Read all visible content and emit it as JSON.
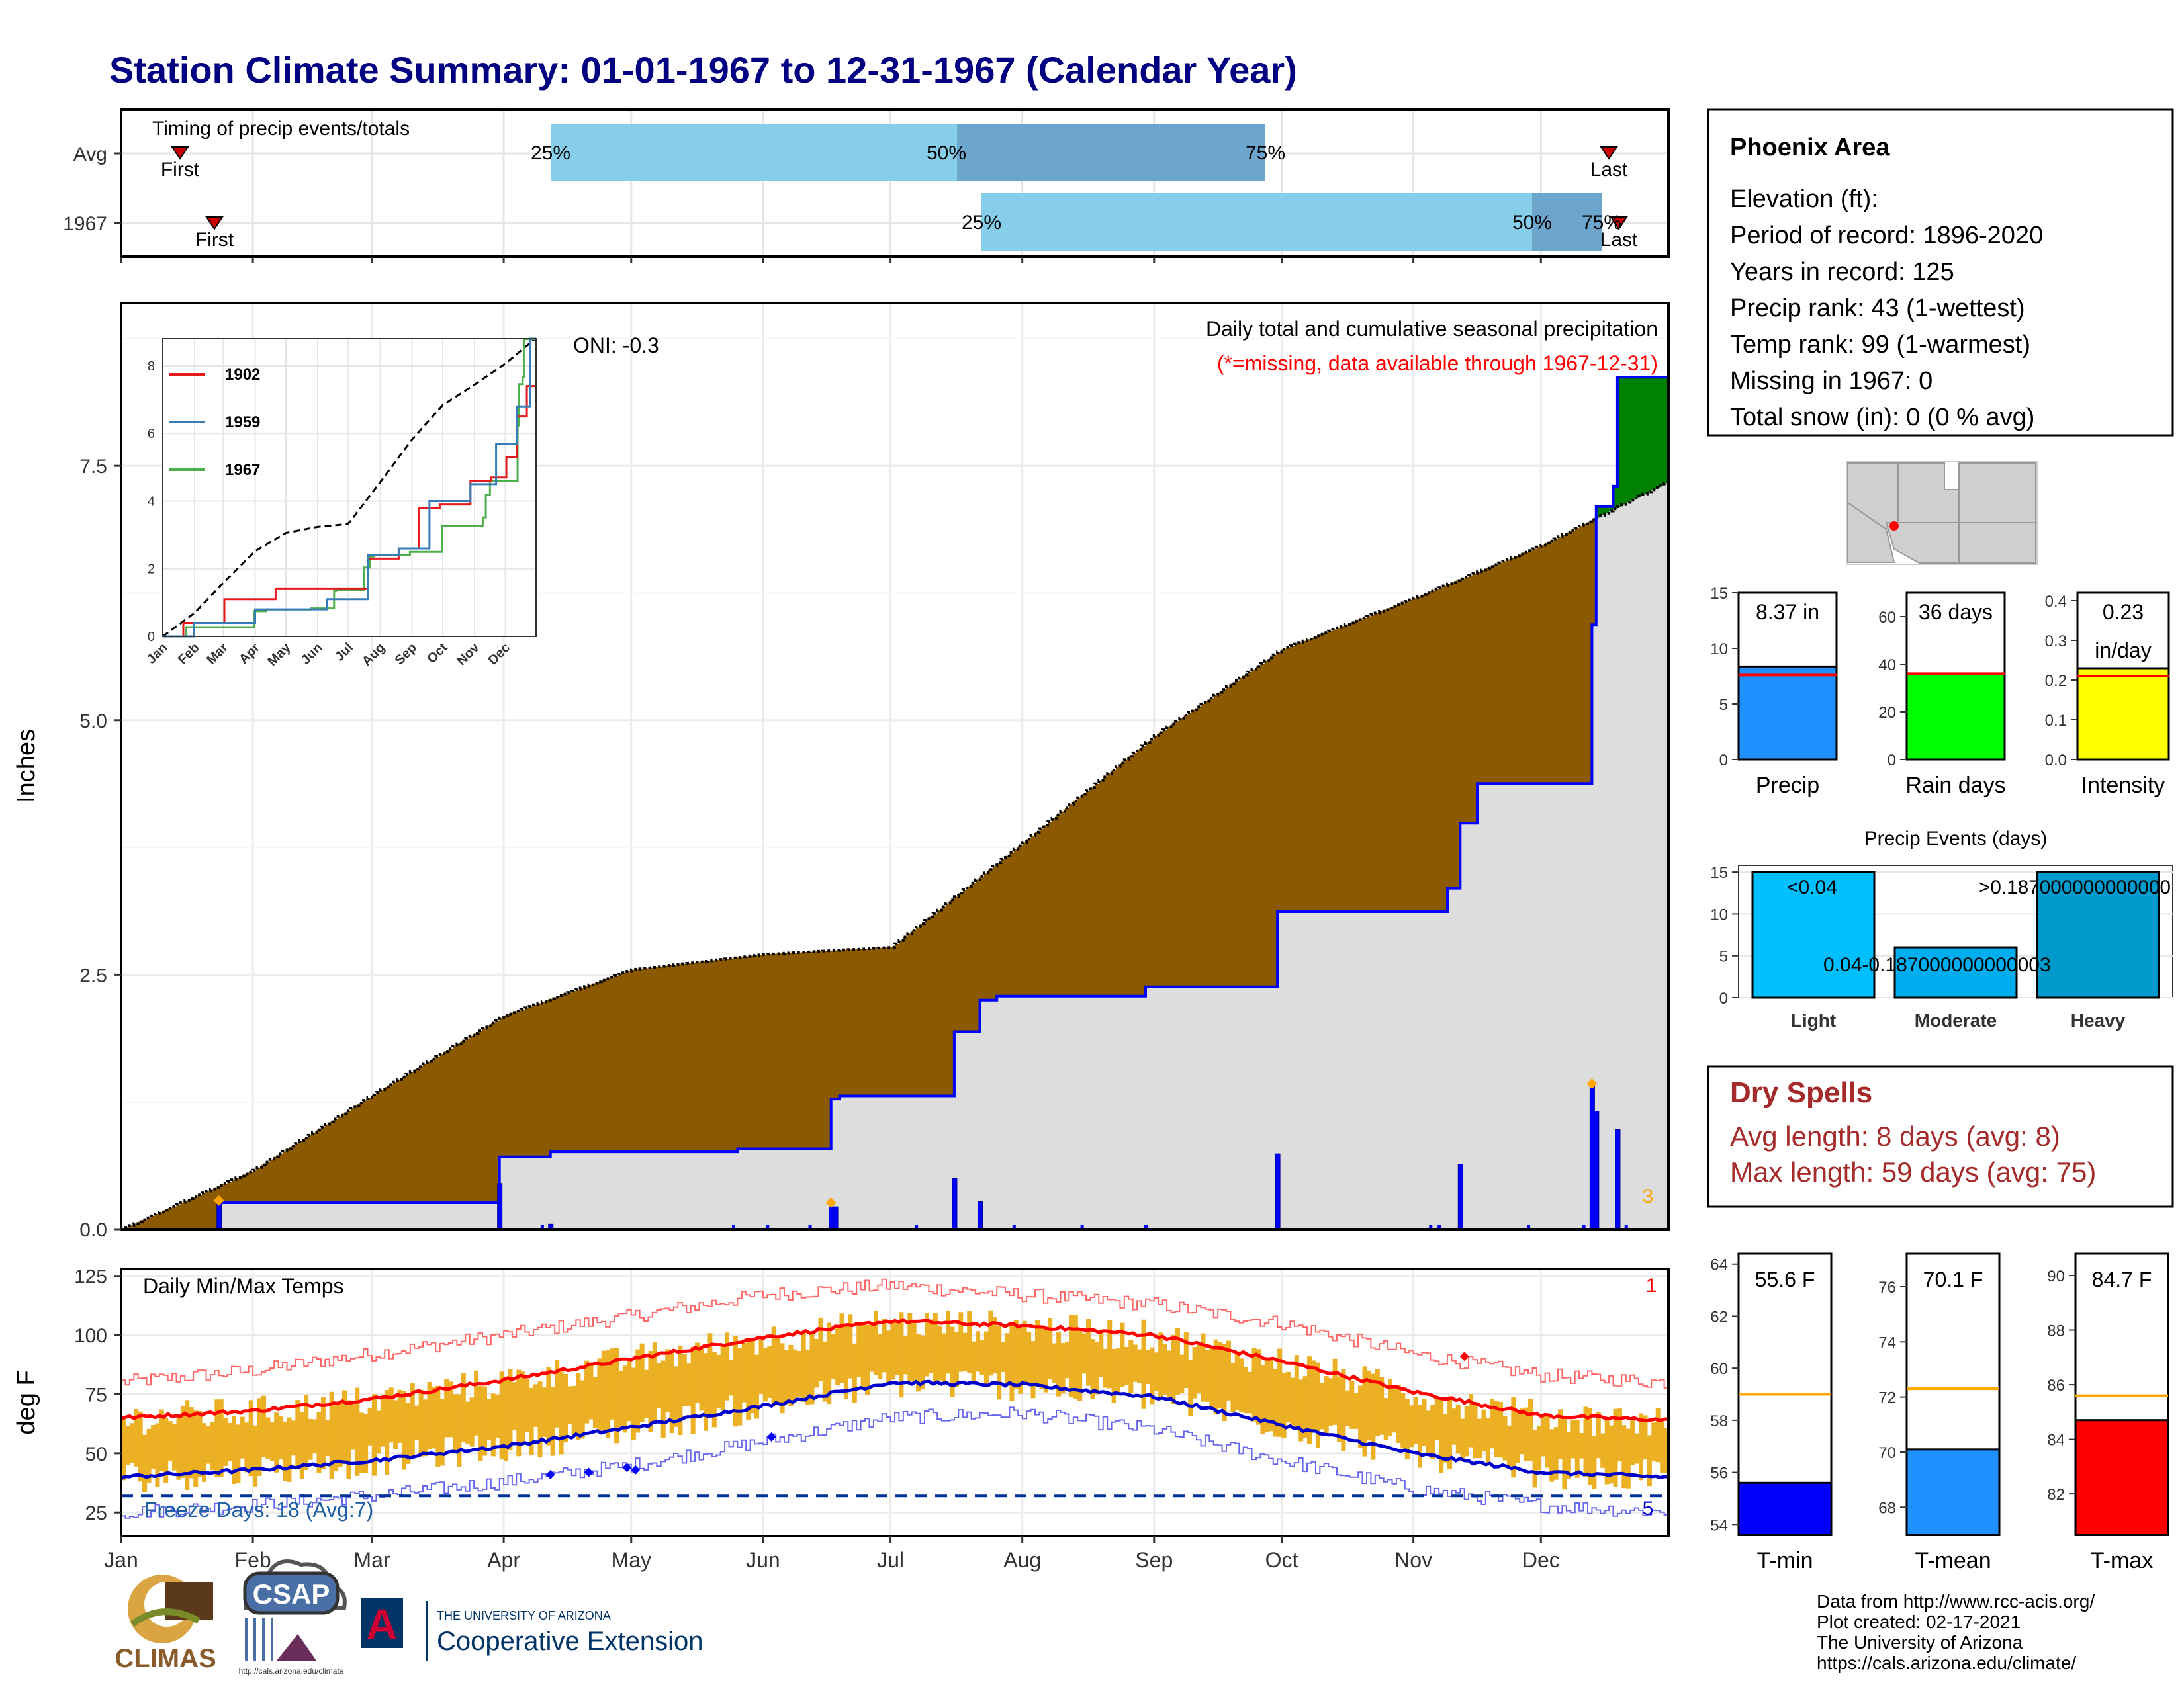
{
  "title": "Station Climate Summary: 01-01-1967 to 12-31-1967 (Calendar Year)",
  "colors": {
    "title": "#000080",
    "precip_fill": "#8B5A00",
    "surplus_fill": "#008000",
    "normal_fill": "#DDDDDD",
    "cum_line": "#0000FF",
    "temp_bar": "#EBB023",
    "tmax_normal": "#FF0000",
    "tmin_normal": "#0000CC",
    "timing_light": "#87CEEB",
    "timing_dark": "#6CA6CD",
    "dry_spell_text": "#A52A2A",
    "missing_note": "#FF0000",
    "marker_orange": "#FFA500"
  },
  "timing": {
    "title": "Timing of precip events/totals",
    "rows": [
      "Avg",
      "1967"
    ],
    "first_label": "First",
    "last_label": "Last",
    "pct_labels": [
      "25%",
      "50%",
      "75%"
    ]
  },
  "info": {
    "station": "Phoenix Area",
    "lines": [
      "Elevation (ft):",
      "Period of record: 1896-2020",
      "Years in record: 125",
      "Precip rank: 43 (1-wettest)",
      "Temp rank: 99 (1-warmest)",
      "Missing in 1967: 0",
      "Total snow (in): 0 (0 % avg)"
    ]
  },
  "precip_panel": {
    "ylabel": "Inches",
    "yticks": [
      "0.0",
      "2.5",
      "5.0",
      "7.5"
    ],
    "oni": "ONI: -0.3",
    "title": "Daily total and cumulative seasonal precipitation",
    "missing_note": "(*=missing, data available through 1967-12-31)",
    "corner_count": "3"
  },
  "inset": {
    "yticks": [
      "0",
      "2",
      "4",
      "6",
      "8"
    ],
    "months": [
      "Jan",
      "Feb",
      "Mar",
      "Apr",
      "May",
      "Jun",
      "Jul",
      "Aug",
      "Sep",
      "Oct",
      "Nov",
      "Dec"
    ],
    "legend": [
      "1902",
      "1959",
      "1967"
    ],
    "legend_colors": [
      "#E41A1C",
      "#377EB8",
      "#4DAF4A"
    ]
  },
  "temp_panel": {
    "title": "Daily Min/Max Temps",
    "ylabel": "deg F",
    "yticks": [
      "25",
      "50",
      "75",
      "100",
      "125"
    ],
    "freeze": "Freeze Days: 18 (Avg:7)",
    "count_top": "1",
    "count_bottom": "5"
  },
  "months": [
    "Jan",
    "Feb",
    "Mar",
    "Apr",
    "May",
    "Jun",
    "Jul",
    "Aug",
    "Sep",
    "Oct",
    "Nov",
    "Dec"
  ],
  "summary_bars": {
    "precip": {
      "label": "Precip",
      "value_text": "8.37 in",
      "value": 8.37,
      "normal": 7.6,
      "yticks": [
        "0",
        "5",
        "10",
        "15"
      ],
      "ymax": 15,
      "color": "#1E90FF"
    },
    "raindays": {
      "label": "Rain days",
      "value_text": "36 days",
      "value": 36,
      "normal": 36,
      "yticks": [
        "0",
        "20",
        "40",
        "60"
      ],
      "ymax": 70,
      "color": "#00FF00"
    },
    "intensity": {
      "label": "Intensity",
      "value_text1": "0.23",
      "value_text2": "in/day",
      "value": 0.23,
      "normal": 0.21,
      "yticks": [
        "0.0",
        "0.1",
        "0.2",
        "0.3",
        "0.4"
      ],
      "ymax": 0.42,
      "color": "#FFFF00"
    }
  },
  "events": {
    "title": "Precip Events (days)",
    "categories": [
      "Light",
      "Moderate",
      "Heavy"
    ],
    "values": [
      15,
      6,
      15
    ],
    "labels": [
      "<0.04",
      "0.04-0.187000000000003",
      ">0.187000000000000"
    ],
    "yticks": [
      "0",
      "5",
      "10",
      "15"
    ],
    "colors": [
      "#00BFFF",
      "#00AEEF",
      "#009ACD"
    ]
  },
  "dry_spells": {
    "title": "Dry Spells",
    "avg_length": "Avg length: 8 days (avg: 8)",
    "max_length": "Max length: 59 days (avg: 75)"
  },
  "temp_bars": {
    "tmin": {
      "label": "T-min",
      "value_text": "55.6 F",
      "value": 55.6,
      "normal": 59.0,
      "yticks": [
        "54",
        "56",
        "58",
        "60",
        "62",
        "64"
      ],
      "ymin": 53.6,
      "ymax": 64.4,
      "color": "#0000FF"
    },
    "tmean": {
      "label": "T-mean",
      "value_text": "70.1 F",
      "value": 70.1,
      "normal": 72.3,
      "yticks": [
        "68",
        "70",
        "72",
        "74",
        "76"
      ],
      "ymin": 67.0,
      "ymax": 77.2,
      "color": "#1E90FF"
    },
    "tmax": {
      "label": "T-max",
      "value_text": "84.7 F",
      "value": 84.7,
      "normal": 85.6,
      "yticks": [
        "82",
        "84",
        "86",
        "88",
        "90"
      ],
      "ymin": 80.5,
      "ymax": 90.8,
      "color": "#FF0000"
    }
  },
  "credits": [
    "Data from http://www.rcc-acis.org/",
    "Plot created: 02-17-2021",
    "The University of Arizona",
    "https://cals.arizona.edu/climate/"
  ],
  "logos": {
    "climas": "CLIMAS",
    "csap": "CSAP",
    "csap_url": "http://cals.arizona.edu/climate",
    "ua_line1": "THE UNIVERSITY OF ARIZONA",
    "ua_line2": "Cooperative Extension",
    "ua_mark": "A"
  },
  "chart_data": [
    {
      "type": "bar",
      "title": "Timing of precip events/totals",
      "categories": [
        "Avg",
        "1967"
      ],
      "series": [
        {
          "name": "First",
          "values": [
            "Jan 15",
            "Feb 21"
          ]
        },
        {
          "name": "25%",
          "values": [
            "Apr 10",
            "Jul 20"
          ]
        },
        {
          "name": "50%",
          "values": [
            "Jun 21",
            "Dec 2"
          ]
        },
        {
          "name": "75%",
          "values": [
            "Sep 2",
            "Dec 14"
          ]
        },
        {
          "name": "Last",
          "values": [
            "Dec 18",
            "Dec 20"
          ]
        }
      ]
    },
    {
      "type": "area",
      "title": "Daily total and cumulative seasonal precipitation",
      "ylabel": "Inches",
      "ylim": [
        0,
        9.1
      ],
      "x_dates": [
        "01-01",
        "02-01",
        "03-01",
        "04-01",
        "05-01",
        "06-01",
        "07-01",
        "08-01",
        "09-01",
        "10-01",
        "11-01",
        "12-01",
        "12-31"
      ],
      "normal_cumulative": [
        0.0,
        0.58,
        1.32,
        2.1,
        2.55,
        2.7,
        2.77,
        3.8,
        4.85,
        5.7,
        6.2,
        6.72,
        7.35
      ],
      "observed_cumulative_steps": [
        {
          "date": "01-24",
          "value": 0.26
        },
        {
          "date": "03-31",
          "value": 0.71
        },
        {
          "date": "04-12",
          "value": 0.76
        },
        {
          "date": "05-26",
          "value": 0.79
        },
        {
          "date": "06-17",
          "value": 1.28
        },
        {
          "date": "06-19",
          "value": 1.31
        },
        {
          "date": "07-16",
          "value": 1.94
        },
        {
          "date": "07-22",
          "value": 2.25
        },
        {
          "date": "07-26",
          "value": 2.29
        },
        {
          "date": "08-30",
          "value": 2.38
        },
        {
          "date": "09-30",
          "value": 3.12
        },
        {
          "date": "11-01",
          "value": 3.12
        },
        {
          "date": "11-09",
          "value": 3.35
        },
        {
          "date": "11-12",
          "value": 3.99
        },
        {
          "date": "11-16",
          "value": 4.38
        },
        {
          "date": "12-12",
          "value": 4.38
        },
        {
          "date": "12-13",
          "value": 5.94
        },
        {
          "date": "12-14",
          "value": 7.1
        },
        {
          "date": "12-18",
          "value": 7.3
        },
        {
          "date": "12-19",
          "value": 8.37
        }
      ],
      "daily_precip": [
        {
          "date": "01-24",
          "value": 0.26
        },
        {
          "date": "03-31",
          "value": 0.45
        },
        {
          "date": "04-12",
          "value": 0.05
        },
        {
          "date": "06-17",
          "value": 0.22
        },
        {
          "date": "06-18",
          "value": 0.22
        },
        {
          "date": "07-16",
          "value": 0.5
        },
        {
          "date": "07-22",
          "value": 0.27
        },
        {
          "date": "09-30",
          "value": 0.74
        },
        {
          "date": "11-12",
          "value": 0.64
        },
        {
          "date": "12-13",
          "value": 1.4
        },
        {
          "date": "12-14",
          "value": 1.16
        },
        {
          "date": "12-19",
          "value": 0.98
        }
      ]
    },
    {
      "type": "line",
      "title": "Daily Min/Max Temps",
      "ylabel": "deg F",
      "ylim": [
        15,
        128
      ],
      "x_dates": [
        "01-01",
        "02-01",
        "03-01",
        "04-01",
        "05-01",
        "06-01",
        "07-01",
        "08-01",
        "09-01",
        "10-01",
        "11-01",
        "12-01",
        "12-31"
      ],
      "series": [
        {
          "name": "Normal max",
          "values": [
            65,
            68,
            73,
            81,
            90,
            99,
            106,
            104,
            100,
            89,
            76,
            66,
            64
          ]
        },
        {
          "name": "Normal min",
          "values": [
            40,
            43,
            47,
            53,
            61,
            70,
            80,
            79,
            74,
            62,
            50,
            42,
            40
          ]
        },
        {
          "name": "Record max",
          "values": [
            80,
            85,
            92,
            100,
            108,
            117,
            121,
            117,
            113,
            105,
            92,
            83,
            80
          ]
        },
        {
          "name": "Record min",
          "values": [
            25,
            28,
            32,
            38,
            45,
            55,
            65,
            67,
            60,
            47,
            35,
            28,
            25
          ]
        }
      ]
    }
  ]
}
